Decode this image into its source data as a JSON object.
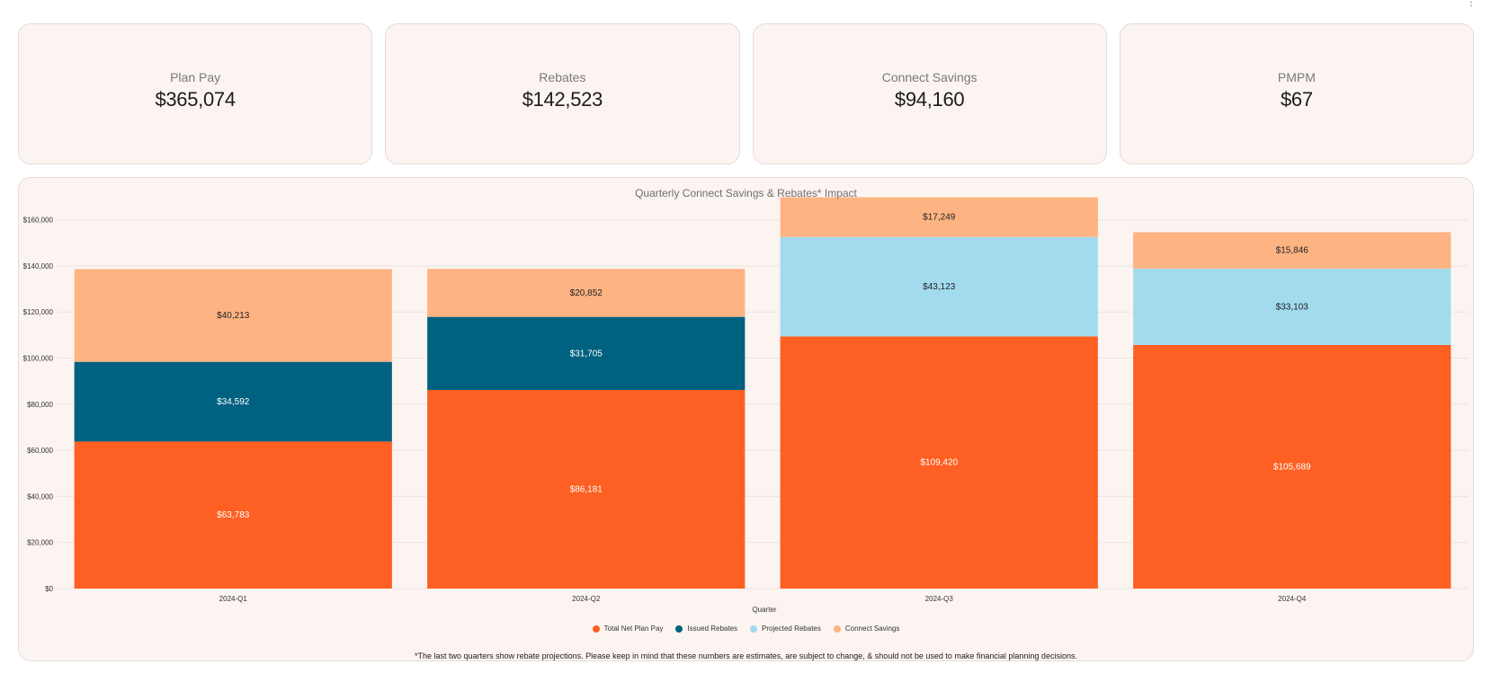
{
  "kpis": [
    {
      "label": "Plan Pay",
      "value": "$365,074"
    },
    {
      "label": "Rebates",
      "value": "$142,523"
    },
    {
      "label": "Connect Savings",
      "value": "$94,160"
    },
    {
      "label": "PMPM",
      "value": "$67"
    }
  ],
  "chart_data": {
    "type": "bar",
    "stacked": true,
    "title": "Quarterly Connect Savings & Rebates* Impact",
    "xlabel": "Quarter",
    "ylabel": "",
    "ylim": [
      0,
      170000
    ],
    "yticks": [
      0,
      20000,
      40000,
      60000,
      80000,
      100000,
      120000,
      140000,
      160000
    ],
    "ytick_labels": [
      "$0",
      "$20,000",
      "$40,000",
      "$60,000",
      "$80,000",
      "$100,000",
      "$120,000",
      "$140,000",
      "$160,000"
    ],
    "grid": true,
    "legend_position": "bottom",
    "categories": [
      "2024-Q1",
      "2024-Q2",
      "2024-Q3",
      "2024-Q4"
    ],
    "series": [
      {
        "name": "Total Net Plan Pay",
        "color": "#fe5f22",
        "label_color": "#ffffff",
        "values": [
          63783,
          86181,
          109420,
          105689
        ],
        "labels": [
          "$63,783",
          "$86,181",
          "$109,420",
          "$105,689"
        ]
      },
      {
        "name": "Issued Rebates",
        "color": "#006181",
        "label_color": "#ffffff",
        "values": [
          34592,
          31705,
          null,
          null
        ],
        "labels": [
          "$34,592",
          "$31,705",
          "",
          ""
        ]
      },
      {
        "name": "Projected Rebates",
        "color": "#a2dbee",
        "label_color": "#222222",
        "values": [
          null,
          null,
          43123,
          33103
        ],
        "labels": [
          "",
          "",
          "$43,123",
          "$33,103"
        ]
      },
      {
        "name": "Connect Savings",
        "color": "#feb383",
        "label_color": "#222222",
        "values": [
          40213,
          20852,
          17249,
          15846
        ],
        "labels": [
          "$40,213",
          "$20,852",
          "$17,249",
          "$15,846"
        ]
      }
    ]
  },
  "footnote": "*The last two quarters show rebate projections. Please keep in mind that these numbers are estimates, are subject to change, & should not be used to make financial planning decisions.",
  "menu": {
    "icon": "more-vertical-icon"
  }
}
